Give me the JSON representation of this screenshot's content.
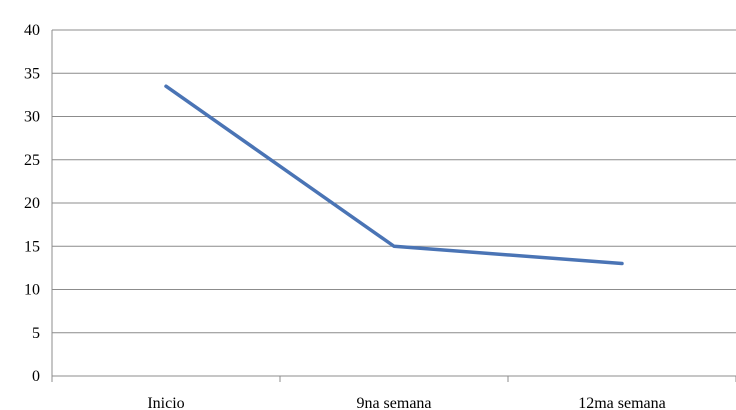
{
  "chart_data": {
    "type": "line",
    "title": "",
    "xlabel": "",
    "ylabel": "",
    "categories": [
      "Inicio",
      "9na semana",
      "12ma semana"
    ],
    "y_ticks": [
      "0",
      "5",
      "10",
      "15",
      "20",
      "25",
      "30",
      "35",
      "40"
    ],
    "ylim": [
      0,
      40
    ],
    "grid": "horizontal",
    "legend": "none",
    "series": [
      {
        "values": [
          33.5,
          15,
          13
        ],
        "color": "#4a74b5"
      }
    ]
  }
}
